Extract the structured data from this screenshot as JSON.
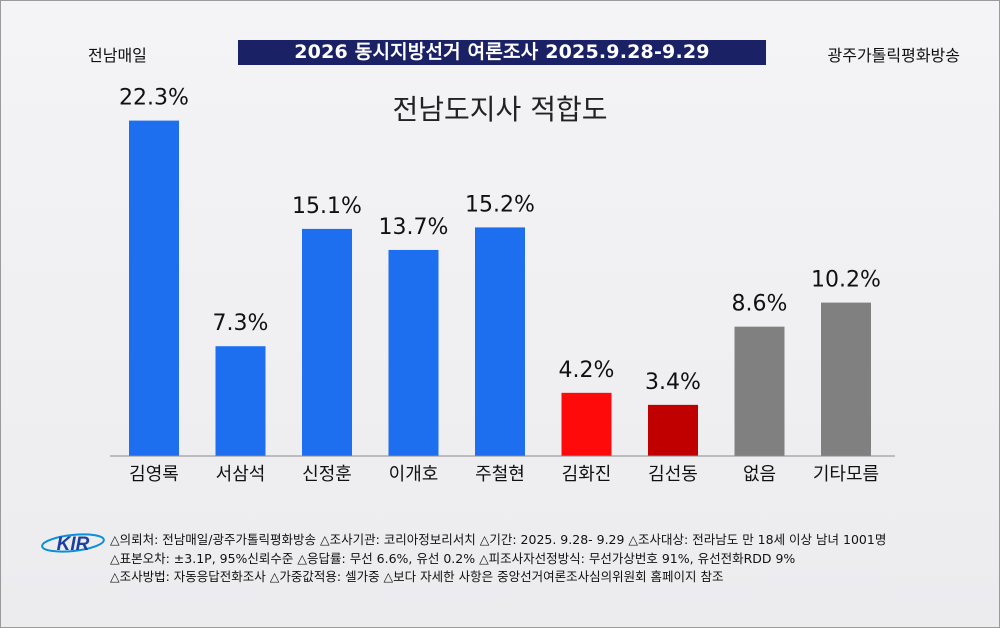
{
  "header": {
    "left": "전남매일",
    "banner": "2026 동시지방선거 여론조사 2025.9.28-9.29",
    "right": "광주가톨릭평화방송"
  },
  "colors": {
    "blue": "#1e6ff0",
    "red": "#ff0a0a",
    "darkred": "#c00000",
    "gray": "#808080",
    "banner": "#1a2164"
  },
  "chart_data": {
    "type": "bar",
    "title": "전남도지사 적합도",
    "categories": [
      "김영록",
      "서삼석",
      "신정훈",
      "이개호",
      "주철현",
      "김화진",
      "김선동",
      "없음",
      "기타모름"
    ],
    "values": [
      22.3,
      7.3,
      15.1,
      13.7,
      15.2,
      4.2,
      3.4,
      8.6,
      10.2
    ],
    "labels": [
      "22.3%",
      "7.3%",
      "15.1%",
      "13.7%",
      "15.2%",
      "4.2%",
      "3.4%",
      "8.6%",
      "10.2%"
    ],
    "bar_colors": [
      "blue",
      "blue",
      "blue",
      "blue",
      "blue",
      "red",
      "darkred",
      "gray",
      "gray"
    ],
    "ylim": [
      0,
      25
    ],
    "xlabel": "",
    "ylabel": "",
    "grid": false
  },
  "logo": {
    "text": "KIR"
  },
  "footer": {
    "line1": "△의뢰처: 전남매일/광주가톨릭평화방송 △조사기관: 코리아정보리서치 △기간: 2025. 9.28- 9.29 △조사대상: 전라남도 만 18세 이상 남녀 1001명",
    "line2": "△표본오차: ±3.1P, 95%신뢰수준 △응답률: 무선 6.6%, 유선 0.2% △피조사자선정방식: 무선가상번호 91%, 유선전화RDD 9%",
    "line3": "△조사방법: 자동응답전화조사 △가중값적용: 셀가중 △보다 자세한 사항은 중앙선거여론조사심의위원회 홈페이지 참조"
  }
}
